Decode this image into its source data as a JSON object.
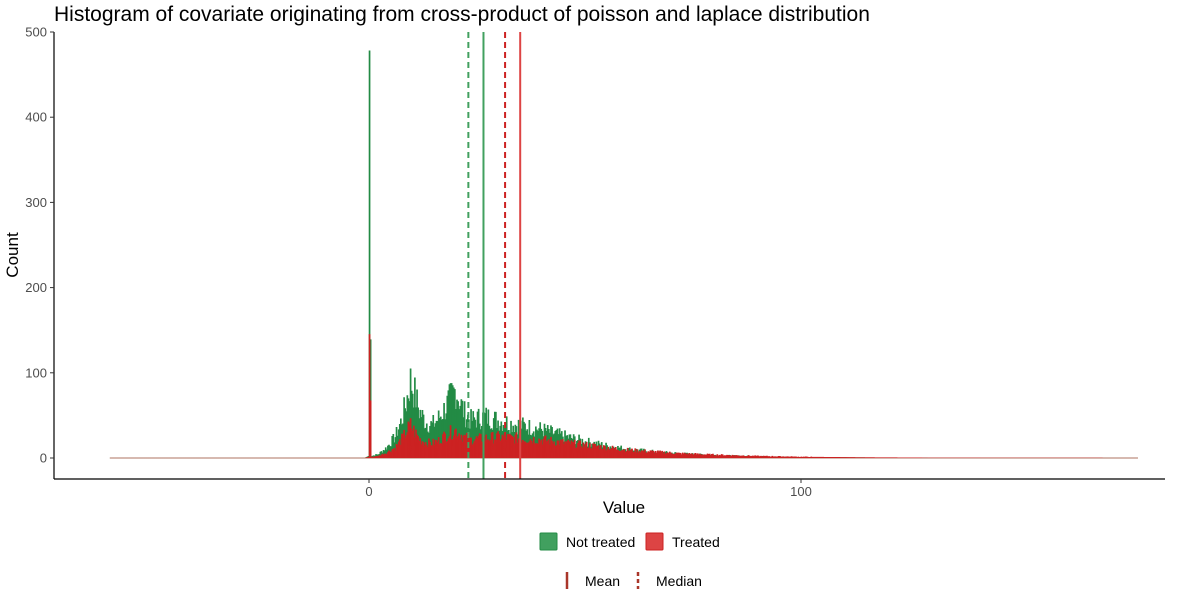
{
  "chart_data": {
    "type": "bar",
    "title": "Histogram of covariate originating from cross-product of poisson and laplace distribution",
    "xlabel": "Value",
    "ylabel": "Count",
    "xlim": [
      -60,
      178
    ],
    "ylim": [
      0,
      500
    ],
    "x_ticks": [
      0,
      100
    ],
    "y_ticks": [
      0,
      100,
      200,
      300,
      400,
      500
    ],
    "grid": false,
    "legend_position": "bottom",
    "series": [
      {
        "name": "Not treated",
        "color": "#238b45",
        "key_color": "#41a05f",
        "x_range": [
          -60,
          178
        ],
        "values_at": [
          [
            -60,
            0
          ],
          [
            -1,
            0
          ],
          [
            -0.2,
            2
          ],
          [
            0,
            478
          ],
          [
            0.4,
            2
          ],
          [
            2,
            4
          ],
          [
            4,
            12
          ],
          [
            6,
            25
          ],
          [
            7.5,
            45
          ],
          [
            8.5,
            65
          ],
          [
            9.5,
            90
          ],
          [
            10.5,
            75
          ],
          [
            11.5,
            55
          ],
          [
            13,
            42
          ],
          [
            14.5,
            38
          ],
          [
            16,
            46
          ],
          [
            17.5,
            58
          ],
          [
            19,
            72
          ],
          [
            20,
            80
          ],
          [
            21,
            65
          ],
          [
            22,
            52
          ],
          [
            23.5,
            44
          ],
          [
            25,
            46
          ],
          [
            27,
            48
          ],
          [
            29,
            45
          ],
          [
            31,
            42
          ],
          [
            33,
            40
          ],
          [
            35,
            38
          ],
          [
            37,
            36
          ],
          [
            40,
            33
          ],
          [
            43,
            28
          ],
          [
            46,
            24
          ],
          [
            50,
            19
          ],
          [
            55,
            14
          ],
          [
            60,
            10
          ],
          [
            66,
            7
          ],
          [
            72,
            5
          ],
          [
            80,
            3
          ],
          [
            90,
            1.6
          ],
          [
            100,
            0.8
          ],
          [
            115,
            0.3
          ],
          [
            130,
            0
          ],
          [
            178,
            0
          ]
        ]
      },
      {
        "name": "Treated",
        "color": "#cc2222",
        "key_color": "#dd4444",
        "x_range": [
          -60,
          178
        ],
        "values_at": [
          [
            -60,
            0
          ],
          [
            -1,
            0
          ],
          [
            -0.2,
            1
          ],
          [
            0,
            145
          ],
          [
            0.4,
            1
          ],
          [
            2,
            2
          ],
          [
            4,
            6
          ],
          [
            6,
            12
          ],
          [
            7.5,
            22
          ],
          [
            8.5,
            30
          ],
          [
            9.5,
            38
          ],
          [
            10.5,
            30
          ],
          [
            11.5,
            22
          ],
          [
            13,
            18
          ],
          [
            14.5,
            17
          ],
          [
            16,
            20
          ],
          [
            17.5,
            26
          ],
          [
            19,
            30
          ],
          [
            20,
            32
          ],
          [
            21,
            28
          ],
          [
            22,
            24
          ],
          [
            23.5,
            21
          ],
          [
            25,
            22
          ],
          [
            27,
            23
          ],
          [
            29,
            24
          ],
          [
            31,
            24
          ],
          [
            33,
            23
          ],
          [
            35,
            23
          ],
          [
            37,
            22
          ],
          [
            40,
            21
          ],
          [
            43,
            19
          ],
          [
            46,
            17
          ],
          [
            50,
            15
          ],
          [
            55,
            12
          ],
          [
            60,
            9
          ],
          [
            66,
            7
          ],
          [
            72,
            5
          ],
          [
            80,
            3.5
          ],
          [
            90,
            2
          ],
          [
            100,
            1.1
          ],
          [
            115,
            0.5
          ],
          [
            130,
            0.1
          ],
          [
            178,
            0
          ]
        ]
      }
    ],
    "reference_lines": [
      {
        "group": "Not treated",
        "stat": "Median",
        "x": 23,
        "color": "#41a05f",
        "dashed": true
      },
      {
        "group": "Not treated",
        "stat": "Mean",
        "x": 26.5,
        "color": "#41a05f",
        "dashed": false
      },
      {
        "group": "Treated",
        "stat": "Median",
        "x": 31.5,
        "color": "#cc2222",
        "dashed": true
      },
      {
        "group": "Treated",
        "stat": "Mean",
        "x": 35,
        "color": "#dd4444",
        "dashed": false
      }
    ],
    "legend_fill": {
      "items": [
        "Not treated",
        "Treated"
      ]
    },
    "legend_linetype": {
      "items": [
        "Mean",
        "Median"
      ],
      "color": "#a9362a"
    }
  }
}
